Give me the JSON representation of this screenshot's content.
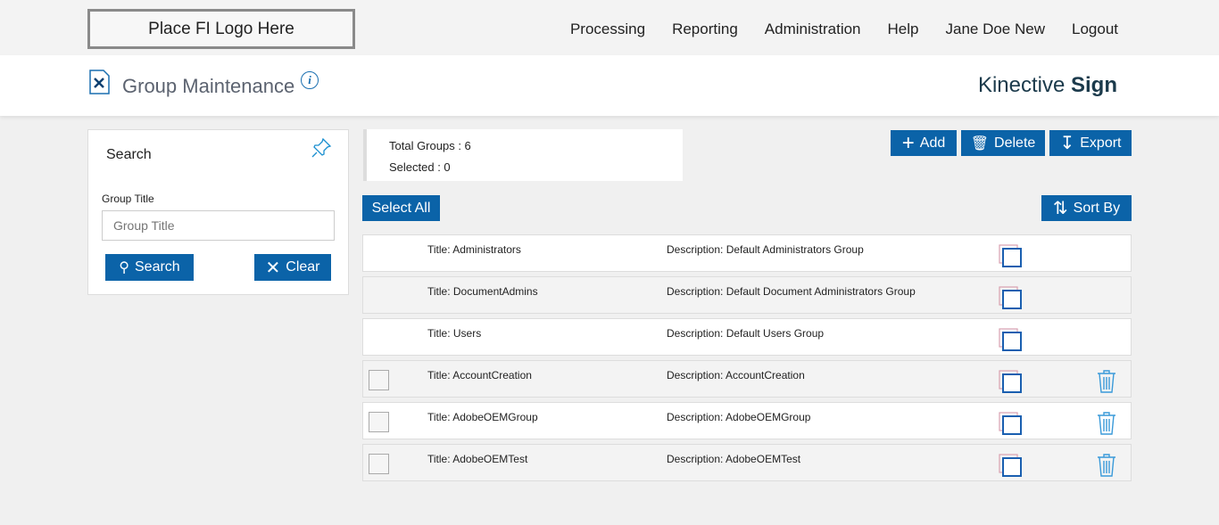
{
  "logo": "Place FI Logo Here",
  "nav": [
    "Processing",
    "Reporting",
    "Administration",
    "Help",
    "Jane Doe New",
    "Logout"
  ],
  "header": {
    "title": "Group Maintenance",
    "brand_light": "Kinective",
    "brand_bold": "Sign"
  },
  "search": {
    "title": "Search",
    "field_label": "Group Title",
    "placeholder": "Group Title",
    "search_label": "Search",
    "clear_label": "Clear"
  },
  "stats": {
    "total": "Total Groups : 6",
    "selected": "Selected : 0"
  },
  "toolbar": {
    "add": "Add",
    "delete": "Delete",
    "export": "Export",
    "select_all": "Select All",
    "sort_by": "Sort By"
  },
  "rows": [
    {
      "title": "Title:  Administrators",
      "desc": "Description: Default Administrators Group",
      "deletable": false
    },
    {
      "title": "Title:  DocumentAdmins",
      "desc": "Description: Default Document Administrators Group",
      "deletable": false
    },
    {
      "title": "Title:  Users",
      "desc": "Description: Default Users Group",
      "deletable": false
    },
    {
      "title": "Title:  AccountCreation",
      "desc": "Description: AccountCreation",
      "deletable": true
    },
    {
      "title": "Title:  AdobeOEMGroup",
      "desc": "Description: AdobeOEMGroup",
      "deletable": true
    },
    {
      "title": "Title:  AdobeOEMTest",
      "desc": "Description: AdobeOEMTest",
      "deletable": true
    }
  ]
}
